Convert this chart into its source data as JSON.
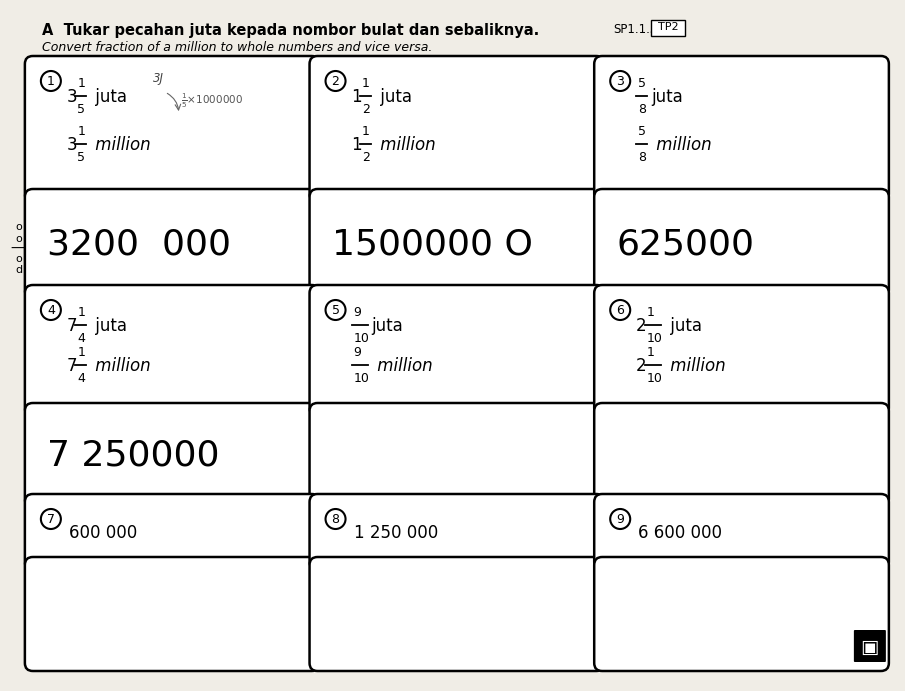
{
  "bg_color": "#e8e4dc",
  "paper_color": "#f0ede6",
  "box_color": "#ffffff",
  "title": "A  Tukar pecahan juta kepada nombor bulat dan sebaliknya.",
  "title_tag": "SP1.1.5",
  "title_tag2": "TP2",
  "subtitle": "Convert fraction of a million to whole numbers and vice versa.",
  "left_label": [
    "o",
    "o",
    "—",
    "o",
    "d"
  ],
  "cells": [
    {
      "num": "1",
      "top": {
        "whole": "3",
        "num": "1",
        "den": "5",
        "suffix": " juta"
      },
      "bot": {
        "whole": "3",
        "num": "1",
        "den": "5",
        "suffix": " million"
      },
      "has_annotation": true,
      "answer": "3200  000",
      "row": 0,
      "col": 0
    },
    {
      "num": "2",
      "top": {
        "whole": "1",
        "num": "1",
        "den": "2",
        "suffix": " juta"
      },
      "bot": {
        "whole": "1",
        "num": "1",
        "den": "2",
        "suffix": " million"
      },
      "has_annotation": false,
      "answer": "1500000 O",
      "row": 0,
      "col": 1
    },
    {
      "num": "3",
      "top": {
        "whole": "",
        "num": "5",
        "den": "8",
        "suffix": "juta"
      },
      "bot": {
        "whole": "",
        "num": "5",
        "den": "8",
        "suffix": " million"
      },
      "has_annotation": false,
      "answer": "625000",
      "row": 0,
      "col": 2
    },
    {
      "num": "4",
      "top": {
        "whole": "7",
        "num": "1",
        "den": "4",
        "suffix": " juta"
      },
      "bot": {
        "whole": "7",
        "num": "1",
        "den": "4",
        "suffix": " million"
      },
      "has_annotation": false,
      "answer": "7 250000",
      "row": 1,
      "col": 0
    },
    {
      "num": "5",
      "top": {
        "whole": "",
        "num": "9",
        "den": "10",
        "suffix": "juta"
      },
      "bot": {
        "whole": "",
        "num": "9",
        "den": "10",
        "suffix": " million"
      },
      "has_annotation": false,
      "answer": "",
      "row": 1,
      "col": 1
    },
    {
      "num": "6",
      "top": {
        "whole": "2",
        "num": "1",
        "den": "10",
        "suffix": " juta"
      },
      "bot": {
        "whole": "2",
        "num": "1",
        "den": "10",
        "suffix": " million"
      },
      "has_annotation": false,
      "answer": "",
      "row": 1,
      "col": 2
    },
    {
      "num": "7",
      "plain": "600 000",
      "answer": "",
      "row": 2,
      "col": 0
    },
    {
      "num": "8",
      "plain": "1 250 000",
      "answer": "",
      "row": 2,
      "col": 1
    },
    {
      "num": "9",
      "plain": "6 600 000",
      "answer": "",
      "row": 2,
      "col": 2
    }
  ]
}
